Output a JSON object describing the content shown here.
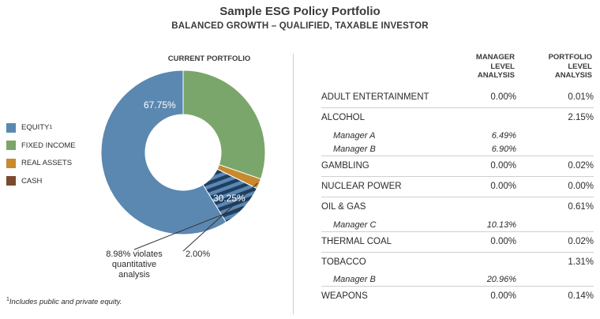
{
  "header": {
    "title": "Sample ESG Policy Portfolio",
    "subtitle": "BALANCED GROWTH – QUALIFIED, TAXABLE INVESTOR"
  },
  "chart_section": {
    "heading": "CURRENT PORTFOLIO",
    "label_equity": "67.75%",
    "label_fixed_income": "30.25%",
    "callout_violation": [
      "8.98% violates",
      "quantitative",
      "analysis"
    ],
    "callout_real_assets": "2.00%",
    "footnote_mark": "1",
    "footnote_text": "Includes public and private equity."
  },
  "legend": [
    {
      "label": "EQUITY",
      "sup": "1",
      "color": "#5b88b1"
    },
    {
      "label": "FIXED INCOME",
      "sup": "",
      "color": "#7aa66b"
    },
    {
      "label": "REAL ASSETS",
      "sup": "",
      "color": "#c8892f"
    },
    {
      "label": "CASH",
      "sup": "",
      "color": "#7b4a2d"
    }
  ],
  "chart_data": {
    "type": "pie",
    "donut": true,
    "title": "CURRENT PORTFOLIO",
    "slices": [
      {
        "name": "EQUITY",
        "value": 67.75,
        "color": "#5b88b1",
        "violating_portion": 8.98
      },
      {
        "name": "FIXED INCOME",
        "value": 30.25,
        "color": "#7aa66b"
      },
      {
        "name": "REAL ASSETS",
        "value": 2.0,
        "color": "#c8892f"
      },
      {
        "name": "CASH",
        "value": 0.0,
        "color": "#7b4a2d"
      }
    ],
    "hatch_color": "#1f3e63",
    "legend_position": "left"
  },
  "table": {
    "col_manager": [
      "MANAGER",
      "LEVEL",
      "ANALYSIS"
    ],
    "col_portfolio": [
      "PORTFOLIO",
      "LEVEL",
      "ANALYSIS"
    ],
    "groups": [
      {
        "rows": [
          {
            "label": "ADULT ENTERTAINMENT",
            "manager": "0.00%",
            "portfolio": "0.01%",
            "sub": false
          }
        ]
      },
      {
        "rows": [
          {
            "label": "ALCOHOL",
            "manager": "",
            "portfolio": "2.15%",
            "sub": false
          },
          {
            "label": "Manager A",
            "manager": "6.49%",
            "portfolio": "",
            "sub": true
          },
          {
            "label": "Manager B",
            "manager": "6.90%",
            "portfolio": "",
            "sub": true
          }
        ]
      },
      {
        "rows": [
          {
            "label": "GAMBLING",
            "manager": "0.00%",
            "portfolio": "0.02%",
            "sub": false
          }
        ]
      },
      {
        "rows": [
          {
            "label": "NUCLEAR POWER",
            "manager": "0.00%",
            "portfolio": "0.00%",
            "sub": false
          }
        ]
      },
      {
        "rows": [
          {
            "label": "OIL & GAS",
            "manager": "",
            "portfolio": "0.61%",
            "sub": false
          },
          {
            "label": "Manager C",
            "manager": "10.13%",
            "portfolio": "",
            "sub": true
          }
        ]
      },
      {
        "rows": [
          {
            "label": "THERMAL COAL",
            "manager": "0.00%",
            "portfolio": "0.02%",
            "sub": false
          }
        ]
      },
      {
        "rows": [
          {
            "label": "TOBACCO",
            "manager": "",
            "portfolio": "1.31%",
            "sub": false
          },
          {
            "label": "Manager B",
            "manager": "20.96%",
            "portfolio": "",
            "sub": true
          }
        ]
      },
      {
        "rows": [
          {
            "label": "WEAPONS",
            "manager": "0.00%",
            "portfolio": "0.14%",
            "sub": false
          }
        ]
      }
    ]
  }
}
